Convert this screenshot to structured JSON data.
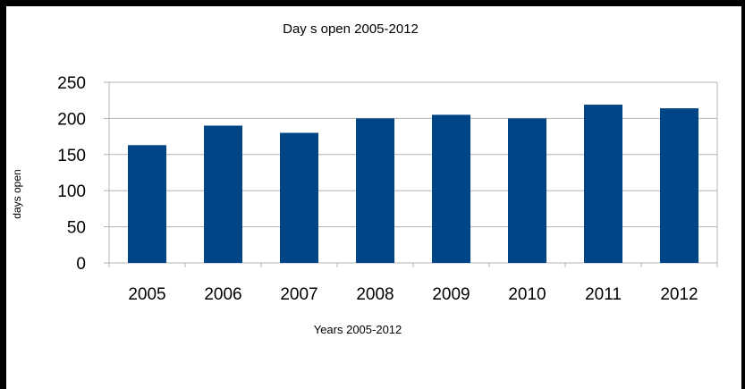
{
  "chart_data": {
    "type": "bar",
    "title": "Day s  open 2005-2012",
    "xlabel": "Years 2005-2012",
    "ylabel": "days open",
    "categories": [
      "2005",
      "2006",
      "2007",
      "2008",
      "2009",
      "2010",
      "2011",
      "2012"
    ],
    "values": [
      163,
      190,
      180,
      200,
      205,
      200,
      219,
      214
    ],
    "ylim": [
      0,
      250
    ],
    "yticks": [
      0,
      50,
      100,
      150,
      200,
      250
    ],
    "grid": true,
    "legend": "none",
    "bar_color": "#004586"
  }
}
